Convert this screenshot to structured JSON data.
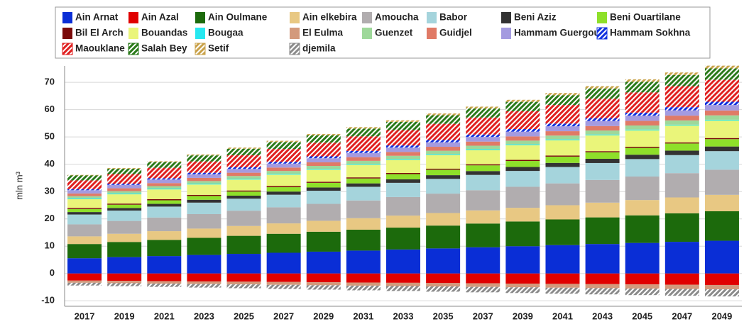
{
  "chart_data": {
    "type": "bar",
    "stacked": true,
    "y_label": "mln m³",
    "grid": true,
    "legend": "top",
    "ylim": [
      -12,
      76
    ],
    "yticks": [
      -10,
      0,
      10,
      20,
      30,
      40,
      50,
      60,
      70
    ],
    "categories": [
      "2017",
      "2019",
      "2021",
      "2023",
      "2025",
      "2027",
      "2029",
      "2031",
      "2033",
      "2035",
      "2037",
      "2039",
      "2041",
      "2043",
      "2045",
      "2047",
      "2049"
    ],
    "series": [
      {
        "name": "Ain Arnat",
        "color": "#0a2ed6",
        "values": [
          5.6,
          6,
          6.4,
          6.8,
          7.2,
          7.6,
          8,
          8.4,
          8.8,
          9.2,
          9.6,
          10,
          10.4,
          10.8,
          11.2,
          11.6,
          12
        ]
      },
      {
        "name": "Ain Azal",
        "color": "#e00000",
        "values": [
          -2.6,
          -2.7,
          -2.8,
          -2.9,
          -3,
          -3.1,
          -3.2,
          -3.3,
          -3.4,
          -3.5,
          -3.6,
          -3.7,
          -3.8,
          -3.9,
          -4,
          -4.1,
          -4.2
        ]
      },
      {
        "name": "Ain Oulmane",
        "color": "#1c6a0c",
        "values": [
          5.2,
          5.55,
          5.9,
          6.25,
          6.6,
          6.95,
          7.3,
          7.65,
          8,
          8.35,
          8.7,
          9.05,
          9.4,
          9.75,
          10.1,
          10.45,
          10.8
        ]
      },
      {
        "name": "Ain elkebira",
        "color": "#e8c883",
        "values": [
          2.8,
          3,
          3.2,
          3.4,
          3.6,
          3.8,
          4,
          4.2,
          4.4,
          4.6,
          4.8,
          5,
          5.2,
          5.4,
          5.6,
          5.8,
          6
        ]
      },
      {
        "name": "Amoucha",
        "color": "#b1adaf",
        "values": [
          4.4,
          4.7,
          5,
          5.3,
          5.6,
          5.9,
          6.2,
          6.5,
          6.8,
          7.1,
          7.4,
          7.7,
          8,
          8.3,
          8.6,
          8.9,
          9.2
        ]
      },
      {
        "name": "Babor",
        "color": "#a5d4dc",
        "values": [
          3.6,
          3.8,
          4,
          4.2,
          4.4,
          4.6,
          4.8,
          5,
          5.2,
          5.4,
          5.6,
          5.8,
          6,
          6.2,
          6.4,
          6.6,
          6.8
        ]
      },
      {
        "name": "Beni Aziz",
        "color": "#333333",
        "values": [
          0.9,
          0.95,
          1,
          1.05,
          1.1,
          1.15,
          1.2,
          1.25,
          1.3,
          1.35,
          1.4,
          1.45,
          1.5,
          1.55,
          1.6,
          1.65,
          1.7
        ]
      },
      {
        "name": "Beni Ouartilane",
        "color": "#8ee02a",
        "values": [
          1.1,
          1.2,
          1.3,
          1.4,
          1.5,
          1.6,
          1.7,
          1.8,
          1.9,
          2,
          2.1,
          2.2,
          2.3,
          2.4,
          2.5,
          2.6,
          2.7
        ]
      },
      {
        "name": "Bil El Arch",
        "color": "#7a0a0a",
        "values": [
          0.4,
          0.4,
          0.4,
          0.4,
          0.4,
          0.4,
          0.4,
          0.4,
          0.4,
          0.4,
          0.4,
          0.4,
          0.4,
          0.4,
          0.4,
          0.4,
          0.4
        ]
      },
      {
        "name": "Bouandas",
        "color": "#eaf57a",
        "values": [
          3.2,
          3.4,
          3.6,
          3.8,
          4,
          4.2,
          4.4,
          4.6,
          4.8,
          5,
          5.2,
          5.4,
          5.6,
          5.8,
          6,
          6.2,
          6.4
        ]
      },
      {
        "name": "Bougaa",
        "color": "#27e8f0",
        "values": [
          0.3,
          0.3,
          0.3,
          0.3,
          0.3,
          0.3,
          0.3,
          0.3,
          0.3,
          0.3,
          0.3,
          0.3,
          0.3,
          0.3,
          0.3,
          0.3,
          0.3
        ]
      },
      {
        "name": "El Eulma",
        "color": "#d39a7c",
        "values": [
          -0.8,
          -0.85,
          -0.9,
          -0.95,
          -1,
          -1.05,
          -1.1,
          -1.15,
          -1.2,
          -1.25,
          -1.3,
          -1.35,
          -1.4,
          -1.45,
          -1.5,
          -1.55,
          -1.6
        ]
      },
      {
        "name": "Guenzet",
        "color": "#9ed89a",
        "values": [
          0.8,
          0.85,
          0.9,
          0.95,
          1,
          1.05,
          1.1,
          1.15,
          1.2,
          1.25,
          1.3,
          1.35,
          1.4,
          1.45,
          1.5,
          1.55,
          1.6
        ]
      },
      {
        "name": "Guidjel",
        "color": "#e07a66",
        "values": [
          1,
          1.05,
          1.1,
          1.15,
          1.2,
          1.25,
          1.3,
          1.35,
          1.4,
          1.45,
          1.5,
          1.55,
          1.6,
          1.65,
          1.7,
          1.75,
          1.8
        ]
      },
      {
        "name": "Hammam Guergour",
        "color": "#a49be0",
        "values": [
          1.2,
          1.25,
          1.3,
          1.35,
          1.4,
          1.45,
          1.5,
          1.55,
          1.6,
          1.65,
          1.7,
          1.75,
          1.8,
          1.85,
          1.9,
          1.95,
          2
        ]
      },
      {
        "name": "Hammam Sokhna",
        "color": "#1030e0",
        "hatch": true,
        "values": [
          0.4,
          0.45,
          0.5,
          0.55,
          0.6,
          0.65,
          0.7,
          0.75,
          0.8,
          0.85,
          0.9,
          0.95,
          1,
          1.05,
          1.1,
          1.15,
          1.2
        ]
      },
      {
        "name": "Maouklane",
        "color": "#e02020",
        "hatch": true,
        "values": [
          3.2,
          3.5,
          3.8,
          4.1,
          4.4,
          4.7,
          5,
          5.3,
          5.6,
          5.9,
          6.2,
          6.5,
          6.8,
          7.1,
          7.4,
          7.7,
          8
        ]
      },
      {
        "name": "Salah Bey",
        "color": "#2a7a1a",
        "hatch": true,
        "values": [
          1.8,
          1.95,
          2.1,
          2.25,
          2.4,
          2.55,
          2.7,
          2.85,
          3,
          3.15,
          3.3,
          3.45,
          3.6,
          3.75,
          3.9,
          4.05,
          4.2
        ]
      },
      {
        "name": "Setif",
        "color": "#c9a24a",
        "hatch": true,
        "values": [
          0.2,
          0.25,
          0.3,
          0.35,
          0.4,
          0.45,
          0.5,
          0.55,
          0.6,
          0.65,
          0.7,
          0.75,
          0.8,
          0.85,
          0.9,
          0.95,
          1
        ]
      },
      {
        "name": "djemila",
        "color": "#8a8a8a",
        "hatch": true,
        "values": [
          -1,
          -1.1,
          -1.2,
          -1.3,
          -1.4,
          -1.5,
          -1.6,
          -1.7,
          -1.8,
          -1.9,
          -2,
          -2.1,
          -2.2,
          -2.3,
          -2.4,
          -2.5,
          -2.6
        ]
      }
    ]
  }
}
